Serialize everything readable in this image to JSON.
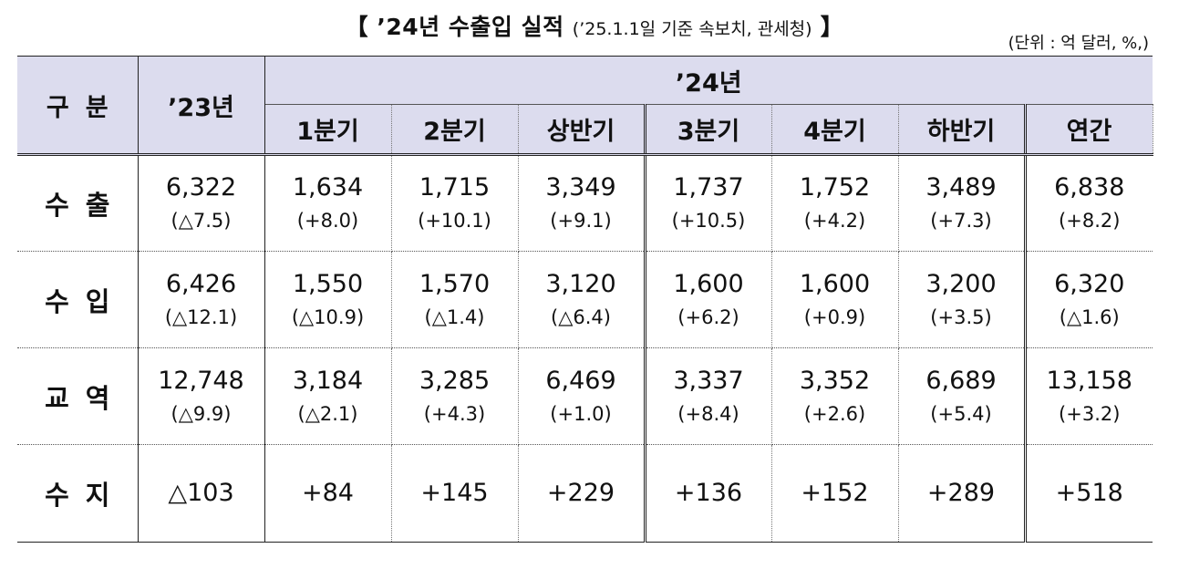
{
  "title": {
    "main": "【 ’24년 수출입 실적",
    "sub": "(’25.1.1일 기준 속보치, 관세청)",
    "close": "】"
  },
  "unit": "(단위 : 억 달러, %,)",
  "header": {
    "category": "구분",
    "prev_year": "’23년",
    "cur_year": "’24년",
    "periods": [
      "1분기",
      "2분기",
      "상반기",
      "3분기",
      "4분기",
      "하반기",
      "연간"
    ]
  },
  "rows": [
    {
      "label": "수출",
      "prev": {
        "value": "6,322",
        "change": "(△7.5)"
      },
      "cells": [
        {
          "value": "1,634",
          "change": "(+8.0)"
        },
        {
          "value": "1,715",
          "change": "(+10.1)"
        },
        {
          "value": "3,349",
          "change": "(+9.1)"
        },
        {
          "value": "1,737",
          "change": "(+10.5)"
        },
        {
          "value": "1,752",
          "change": "(+4.2)"
        },
        {
          "value": "3,489",
          "change": "(+7.3)"
        },
        {
          "value": "6,838",
          "change": "(+8.2)"
        }
      ]
    },
    {
      "label": "수입",
      "prev": {
        "value": "6,426",
        "change": "(△12.1)"
      },
      "cells": [
        {
          "value": "1,550",
          "change": "(△10.9)"
        },
        {
          "value": "1,570",
          "change": "(△1.4)"
        },
        {
          "value": "3,120",
          "change": "(△6.4)"
        },
        {
          "value": "1,600",
          "change": "(+6.2)"
        },
        {
          "value": "1,600",
          "change": "(+0.9)"
        },
        {
          "value": "3,200",
          "change": "(+3.5)"
        },
        {
          "value": "6,320",
          "change": "(△1.6)"
        }
      ]
    },
    {
      "label": "교역",
      "prev": {
        "value": "12,748",
        "change": "(△9.9)"
      },
      "cells": [
        {
          "value": "3,184",
          "change": "(△2.1)"
        },
        {
          "value": "3,285",
          "change": "(+4.3)"
        },
        {
          "value": "6,469",
          "change": "(+1.0)"
        },
        {
          "value": "3,337",
          "change": "(+8.4)"
        },
        {
          "value": "3,352",
          "change": "(+2.6)"
        },
        {
          "value": "6,689",
          "change": "(+5.4)"
        },
        {
          "value": "13,158",
          "change": "(+3.2)"
        }
      ]
    },
    {
      "label": "수지",
      "prev": {
        "value": "△103"
      },
      "cells": [
        {
          "value": "+84"
        },
        {
          "value": "+145"
        },
        {
          "value": "+229"
        },
        {
          "value": "+136"
        },
        {
          "value": "+152"
        },
        {
          "value": "+289"
        },
        {
          "value": "+518"
        }
      ]
    }
  ],
  "colors": {
    "header_bg": "#dcdcee",
    "text": "#111111",
    "border": "#222222"
  }
}
